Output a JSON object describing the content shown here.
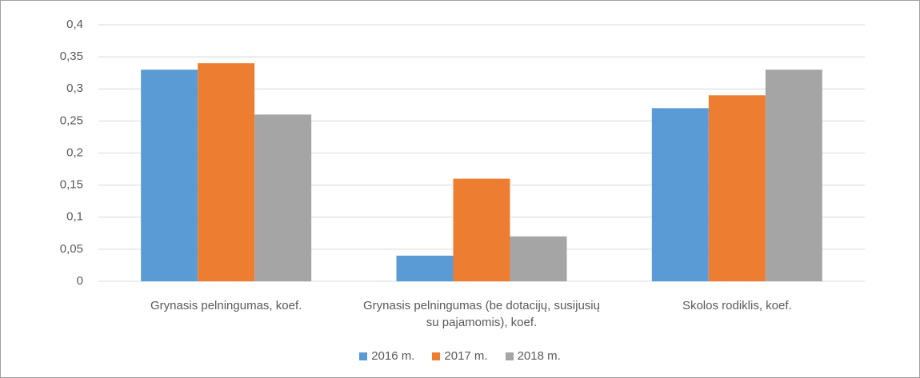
{
  "chart_data": {
    "type": "bar",
    "categories": [
      "Grynasis pelningumas, koef.",
      "Grynasis pelningumas (be dotacijų, susijusių su pajamomis), koef.",
      "Skolos rodiklis, koef."
    ],
    "series": [
      {
        "name": "2016 m.",
        "color": "#5b9bd5",
        "values": [
          0.33,
          0.04,
          0.27
        ]
      },
      {
        "name": "2017 m.",
        "color": "#ed7d31",
        "values": [
          0.34,
          0.16,
          0.29
        ]
      },
      {
        "name": "2018 m.",
        "color": "#a5a5a5",
        "values": [
          0.26,
          0.07,
          0.33
        ]
      }
    ],
    "ylim": [
      0,
      0.4
    ],
    "yticks": [
      0,
      {
        "value": 0.05,
        "label": "0,05"
      },
      {
        "value": 0.1,
        "label": "0,1"
      },
      {
        "value": 0.15,
        "label": "0,15"
      },
      {
        "value": 0.2,
        "label": "0,2"
      },
      {
        "value": 0.25,
        "label": "0,25"
      },
      {
        "value": 0.3,
        "label": "0,3"
      },
      {
        "value": 0.35,
        "label": "0,35"
      },
      {
        "value": 0.4,
        "label": "0,4"
      }
    ],
    "grid": true,
    "legend": "bottom"
  }
}
